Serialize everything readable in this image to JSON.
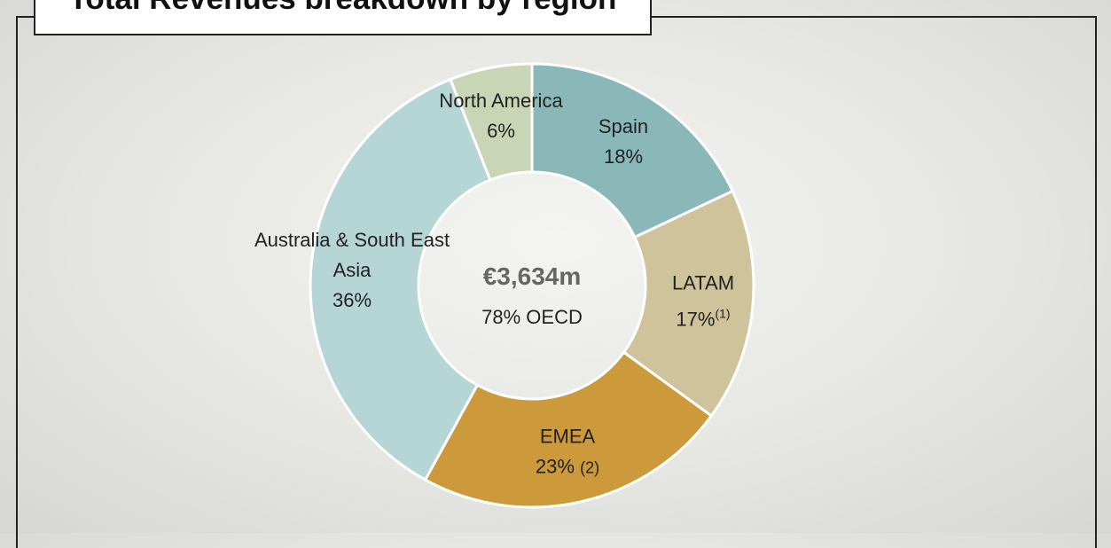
{
  "chart_data": {
    "type": "donut",
    "title": "Total Revenues breakdown by region",
    "center_value": "€3,634m",
    "center_note": "78% OECD",
    "categories": [
      "Spain",
      "LATAM",
      "EMEA",
      "Australia & South East Asia",
      "North America"
    ],
    "values": [
      18,
      17,
      23,
      36,
      6
    ],
    "value_labels": [
      "18%",
      "17%",
      "23%",
      "36%",
      "6%"
    ],
    "value_notes": [
      null,
      "(1)",
      "(2)",
      null,
      null
    ],
    "colors": [
      "#8ab8b8",
      "#cfc39b",
      "#cc9a3b",
      "#b6d5d5",
      "#c9d5b4"
    ]
  }
}
